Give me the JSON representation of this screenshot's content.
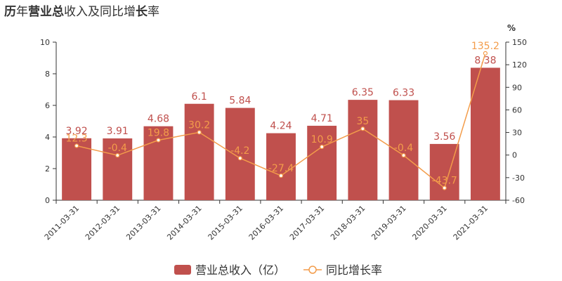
{
  "title": {
    "part1": "历",
    "part2": "年",
    "part3": "营业总",
    "part4": "收入及同比增",
    "part5": "长",
    "part6": "率"
  },
  "colors": {
    "bar": "#c0504d",
    "line": "#f39c4a",
    "axis": "#333333"
  },
  "chart_data": {
    "type": "bar",
    "categories": [
      "2011-03-31",
      "2012-03-31",
      "2013-03-31",
      "2014-03-31",
      "2015-03-31",
      "2016-03-31",
      "2017-03-31",
      "2018-03-31",
      "2019-03-31",
      "2020-03-31",
      "2021-03-31"
    ],
    "series": [
      {
        "name": "营业总收入（亿）",
        "type": "bar",
        "axis": "left",
        "values": [
          3.92,
          3.91,
          4.68,
          6.1,
          5.84,
          4.24,
          4.71,
          6.35,
          6.33,
          3.56,
          8.38
        ],
        "labels": [
          "3.92",
          "3.91",
          "4.68",
          "6.1",
          "5.84",
          "4.24",
          "4.71",
          "6.35",
          "6.33",
          "3.56",
          "8.38"
        ]
      },
      {
        "name": "同比增长率",
        "type": "line",
        "axis": "right",
        "values": [
          12.3,
          -0.4,
          19.8,
          30.2,
          -4.2,
          -27.4,
          10.9,
          35,
          -0.4,
          -43.7,
          135.2
        ],
        "labels": [
          "12.3",
          "-0.4",
          "19.8",
          "30.2",
          "-4.2",
          "-27.4",
          "10.9",
          "35",
          "-0.4",
          "-43.7",
          "135.2"
        ]
      }
    ],
    "ylim_left": [
      0,
      10
    ],
    "yticks_left": [
      "0",
      "2",
      "4",
      "6",
      "8",
      "10"
    ],
    "ylim_right": [
      -60,
      150
    ],
    "yticks_right": [
      "-60",
      "-30",
      "0",
      "30",
      "60",
      "90",
      "120",
      "150"
    ],
    "right_unit": "%",
    "legend_position": "bottom",
    "grid": false
  }
}
